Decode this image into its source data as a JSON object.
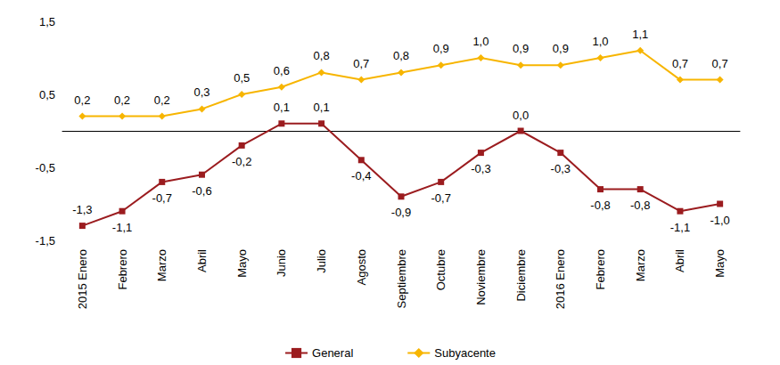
{
  "chart_data": {
    "type": "line",
    "categories": [
      "2015 Enero",
      "Febrero",
      "Marzo",
      "Abril",
      "Mayo",
      "Junio",
      "Julio",
      "Agosto",
      "Septiembre",
      "Octubre",
      "Noviembre",
      "Diciembre",
      "2016 Enero",
      "Febrero",
      "Marzo",
      "Abril",
      "Mayo"
    ],
    "series": [
      {
        "name": "General",
        "color": "#9b1c1f",
        "marker": "square",
        "values": [
          -1.3,
          -1.1,
          -0.7,
          -0.6,
          -0.2,
          0.1,
          0.1,
          -0.4,
          -0.9,
          -0.7,
          -0.3,
          0.0,
          -0.3,
          -0.8,
          -0.8,
          -1.1,
          -1.0
        ],
        "value_labels": [
          "-1,3",
          "-1,1",
          "-0,7",
          "-0,6",
          "-0,2",
          "0,1",
          "0,1",
          "-0,4",
          "-0,9",
          "-0,7",
          "-0,3",
          "0,0",
          "-0,3",
          "-0,8",
          "-0,8",
          "-1,1",
          "-1,0"
        ]
      },
      {
        "name": "Subyacente",
        "color": "#f7b500",
        "marker": "diamond",
        "values": [
          0.2,
          0.2,
          0.2,
          0.3,
          0.5,
          0.6,
          0.8,
          0.7,
          0.8,
          0.9,
          1.0,
          0.9,
          0.9,
          1.0,
          1.1,
          0.7,
          0.7
        ],
        "value_labels": [
          "0,2",
          "0,2",
          "0,2",
          "0,3",
          "0,5",
          "0,6",
          "0,8",
          "0,7",
          "0,8",
          "0,9",
          "1,0",
          "0,9",
          "0,9",
          "1,0",
          "1,1",
          "0,7",
          "0,7"
        ]
      }
    ],
    "ylim": [
      -1.5,
      1.5
    ],
    "yticks": [
      {
        "value": -1.5,
        "label": "-1,5"
      },
      {
        "value": -0.5,
        "label": "-0,5"
      },
      {
        "value": 0.5,
        "label": "0,5"
      },
      {
        "value": 1.5,
        "label": "1,5"
      }
    ],
    "grid": false,
    "legend": "bottom",
    "data_labels": true
  }
}
